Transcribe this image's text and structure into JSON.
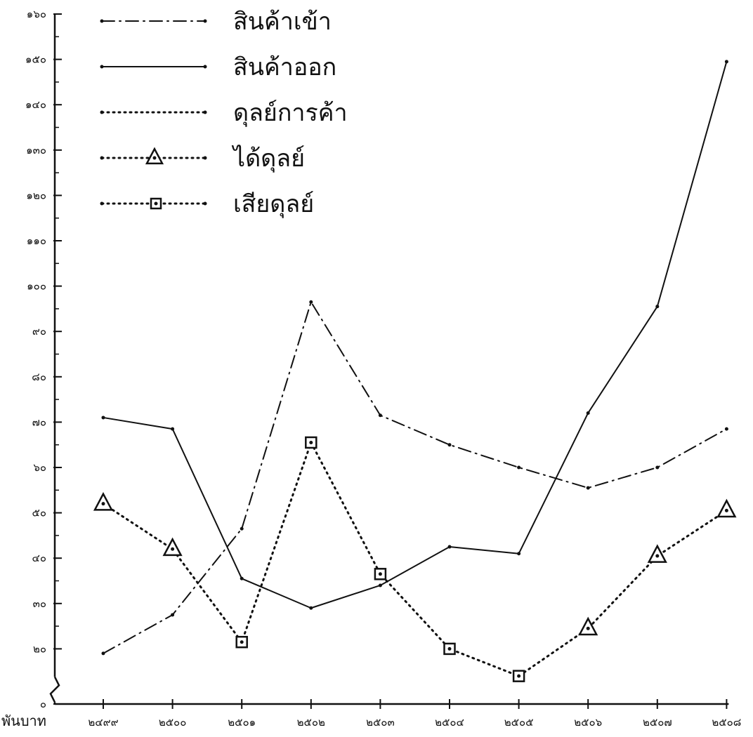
{
  "chart_data": {
    "type": "line",
    "title": "",
    "xlabel": "",
    "ylabel": "พันบาท",
    "categories": [
      "๒๔๙๙",
      "๒๕๐๐",
      "๒๕๐๑",
      "๒๕๐๒",
      "๒๕๐๓",
      "๒๕๐๔",
      "๒๕๐๕",
      "๒๕๐๖",
      "๒๕๐๗",
      "๒๕๐๘"
    ],
    "y_ticks": [
      {
        "value": 0,
        "label": "๐"
      },
      {
        "value": 20,
        "label": "๒๐"
      },
      {
        "value": 30,
        "label": "๓๐"
      },
      {
        "value": 40,
        "label": "๔๐"
      },
      {
        "value": 50,
        "label": "๕๐"
      },
      {
        "value": 60,
        "label": "๖๐"
      },
      {
        "value": 70,
        "label": "๗๐"
      },
      {
        "value": 80,
        "label": "๘๐"
      },
      {
        "value": 90,
        "label": "๙๐"
      },
      {
        "value": 100,
        "label": "๑๐๐"
      },
      {
        "value": 110,
        "label": "๑๑๐"
      },
      {
        "value": 120,
        "label": "๑๒๐"
      },
      {
        "value": 130,
        "label": "๑๓๐"
      },
      {
        "value": 140,
        "label": "๑๔๐"
      },
      {
        "value": 150,
        "label": "๑๕๐"
      },
      {
        "value": 160,
        "label": "๑๖๐"
      }
    ],
    "ylim": [
      0,
      160
    ],
    "axis_break": true,
    "grid": false,
    "legend_position": "top-left",
    "series": [
      {
        "name": "สินค้าเข้า",
        "style": "dash-dot",
        "values": [
          19,
          27.5,
          46.5,
          96.5,
          71.5,
          65,
          60,
          55.5,
          60,
          68.5
        ]
      },
      {
        "name": "สินค้าออก",
        "style": "solid",
        "values": [
          71,
          68.5,
          35.5,
          29,
          34,
          42.5,
          41,
          72,
          95.5,
          149.5
        ]
      },
      {
        "name": "ดุลย์การค้า",
        "style": "dotted",
        "values": [
          52,
          42,
          21.5,
          65.5,
          36.5,
          20,
          14,
          24.5,
          40.5,
          50.5
        ]
      }
    ],
    "balance_markers": {
      "ได้ดุลย์": [
        0,
        1,
        7,
        8,
        9
      ],
      "เสียดุลย์": [
        2,
        3,
        4,
        5,
        6
      ]
    },
    "legend": [
      {
        "label": "สินค้าเข้า",
        "style": "dash-dot",
        "marker": "none"
      },
      {
        "label": "สินค้าออก",
        "style": "solid",
        "marker": "none"
      },
      {
        "label": "ดุลย์การค้า",
        "style": "dotted",
        "marker": "none"
      },
      {
        "label": "ได้ดุลย์",
        "style": "dotted",
        "marker": "triangle"
      },
      {
        "label": "เสียดุลย์",
        "style": "dotted",
        "marker": "square"
      }
    ],
    "colors": {
      "ink": "#111111",
      "background": "#ffffff"
    }
  }
}
